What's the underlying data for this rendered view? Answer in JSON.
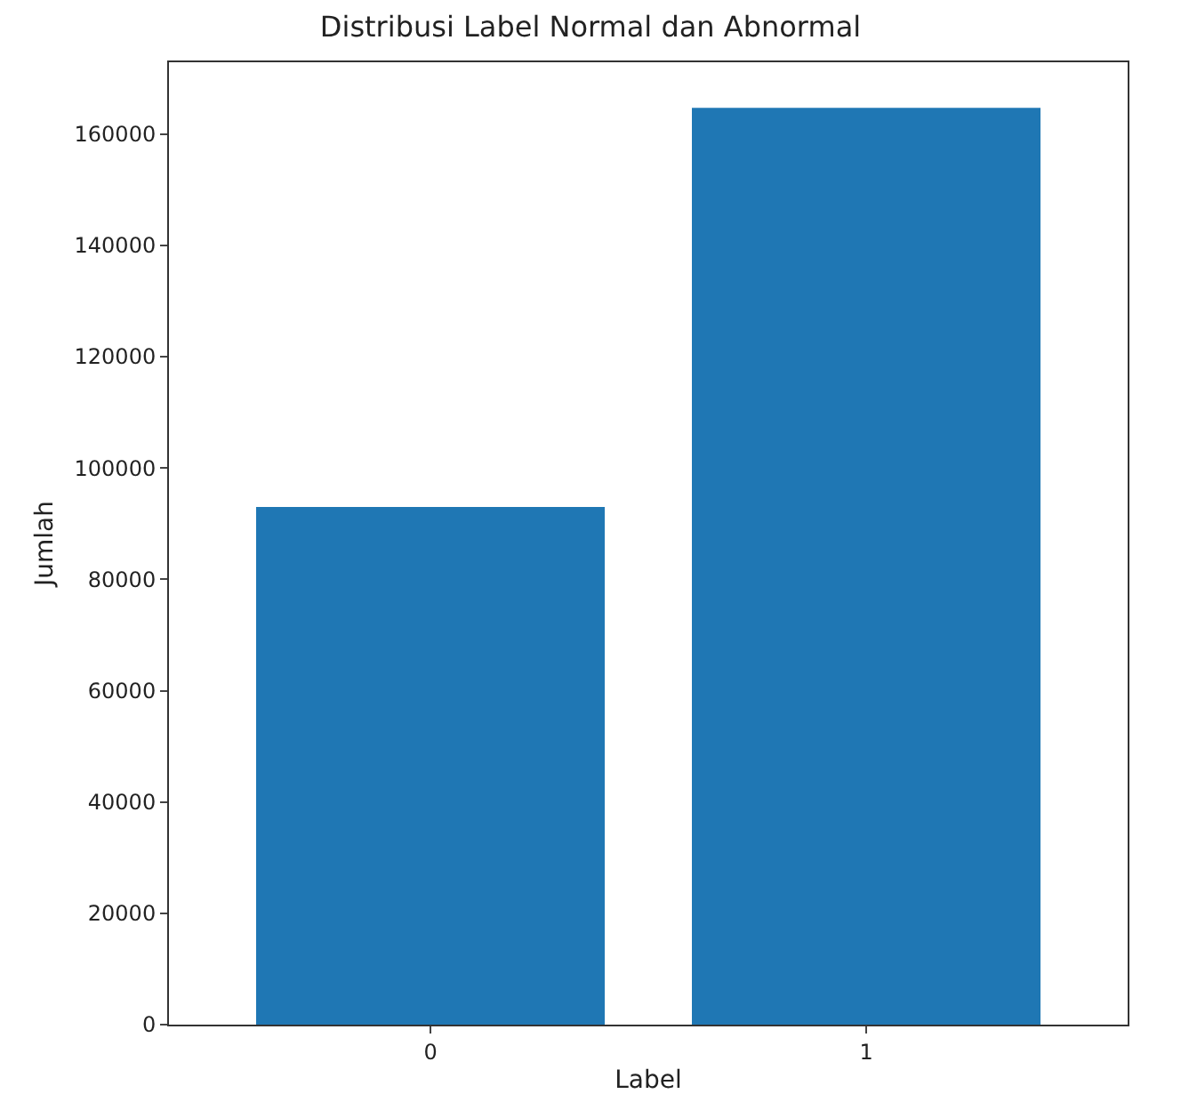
{
  "chart_data": {
    "type": "bar",
    "title": "Distribusi Label Normal dan Abnormal",
    "xlabel": "Label",
    "ylabel": "Jumlah",
    "categories": [
      "0",
      "1"
    ],
    "values": [
      93000,
      164700
    ],
    "color": "#1f77b4",
    "ylim": [
      0,
      172900
    ],
    "yticks": [
      0,
      20000,
      40000,
      60000,
      80000,
      100000,
      120000,
      140000,
      160000
    ]
  }
}
